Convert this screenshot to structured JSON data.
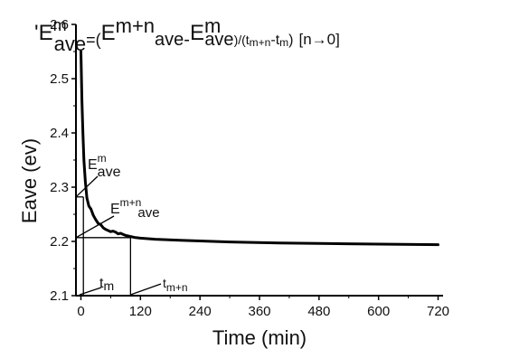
{
  "chart_data": {
    "type": "line",
    "title": {
      "prime": "'",
      "lhs": "E",
      "lhs_sup": "m",
      "lhs_sub": "ave",
      "eq_open": "=(",
      "t1": "E",
      "t1_sup": "m+n",
      "t1_sub": "ave",
      "minus": "-",
      "t2": "E",
      "t2_sup": "m",
      "t2_sub": "ave",
      "div_open": ")/(t",
      "t3_sub": "m+n",
      "minus2": "-t",
      "t4_sub": "m",
      "close": ")",
      "limit": "[n→0]"
    },
    "xlabel": "Time (min)",
    "ylabel": "Eave (ev)",
    "xlim": [
      -10,
      730
    ],
    "ylim": [
      2.1,
      2.6
    ],
    "xticks": [
      0,
      120,
      240,
      360,
      480,
      600,
      720
    ],
    "yticks": [
      2.1,
      2.2,
      2.3,
      2.4,
      2.5,
      2.6
    ],
    "grid": false,
    "series": [
      {
        "x": [
          0,
          2,
          4,
          6,
          9,
          12,
          16,
          20,
          25,
          30,
          35,
          40,
          45,
          50,
          55,
          60,
          65,
          70,
          75,
          80,
          85,
          90,
          95,
          100,
          110,
          120,
          150,
          200,
          300,
          400,
          500,
          600,
          720
        ],
        "y": [
          2.55,
          2.46,
          2.4,
          2.35,
          2.31,
          2.28,
          2.265,
          2.26,
          2.248,
          2.24,
          2.233,
          2.231,
          2.225,
          2.222,
          2.22,
          2.218,
          2.219,
          2.217,
          2.214,
          2.215,
          2.213,
          2.211,
          2.21,
          2.209,
          2.207,
          2.206,
          2.204,
          2.202,
          2.199,
          2.197,
          2.196,
          2.195,
          2.194
        ]
      }
    ],
    "annotations": {
      "em_label": {
        "base": "E",
        "sup": "m",
        "sub": "ave"
      },
      "emn_label": {
        "base": "E",
        "sup": "m+n",
        "sub": "ave"
      },
      "tm_label": {
        "base": "t",
        "sub": "m"
      },
      "tmn_label": {
        "base": "t",
        "sub": "m+n"
      },
      "t_m": 5,
      "t_mn": 100,
      "e_m": 2.282,
      "e_mn": 2.207
    }
  }
}
